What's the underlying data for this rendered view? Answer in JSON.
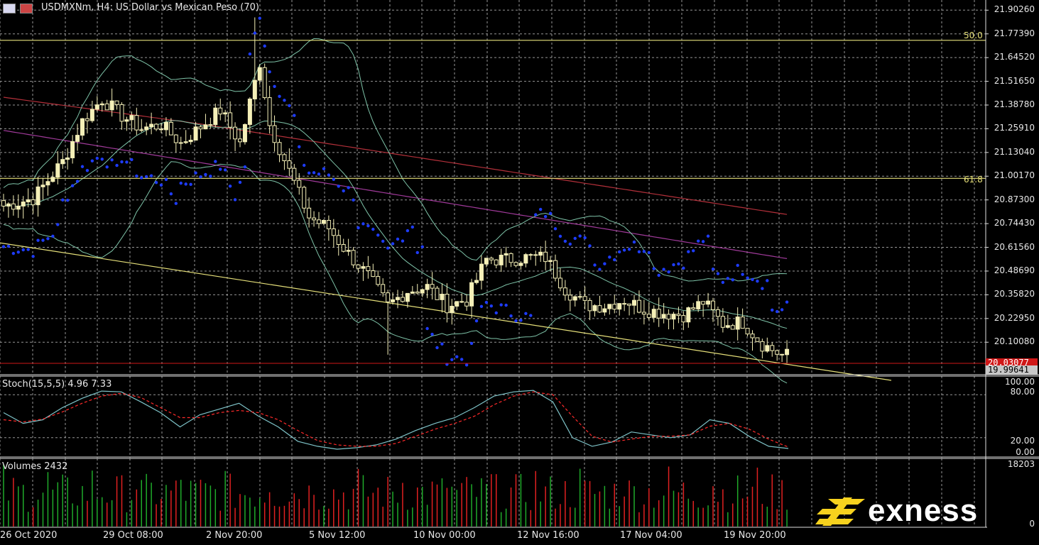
{
  "window": {
    "title": "USDMXNm, H4:  US Dollar vs Mexican Peso (70)"
  },
  "brand": {
    "name": "exness",
    "color": "#f7d21e"
  },
  "colors": {
    "background": "#000000",
    "grid": "#c8c8c8",
    "bull_candle": "#f5f0b8",
    "bear_candle": "#f5f0b8",
    "fib_line": "#e6e07a",
    "trend_line": "#e6e07a",
    "bollinger": "#7ec3a8",
    "ma_slow": "#b3303a",
    "ma_medium": "#a03a9a",
    "parabolic_sar": "#1e3cff",
    "stoch_main": "#7ec3c8",
    "stoch_signal": "#ff2a2a",
    "vol_up": "#1faa2a",
    "vol_down": "#e02020",
    "bid_tag": "#d01818",
    "ask_tag": "#b0b0b0"
  },
  "chart_data": [
    {
      "type": "candlestick",
      "title": "USDMXNm, H4:  US Dollar vs Mexican Peso (70)",
      "ylim": [
        19.94,
        21.95
      ],
      "y_ticks": [
        "21.90260",
        "21.77390",
        "21.64520",
        "21.51650",
        "21.38780",
        "21.25910",
        "21.13040",
        "21.00170",
        "20.87300",
        "20.74430",
        "20.61560",
        "20.48690",
        "20.35820",
        "20.22950",
        "20.10080"
      ],
      "x_ticks": [
        "26 Oct 2020",
        "29 Oct 08:00",
        "2 Nov 20:00",
        "5 Nov 12:00",
        "10 Nov 00:00",
        "12 Nov 16:00",
        "17 Nov 04:00",
        "19 Nov 20:00"
      ],
      "current_bid": "20.03077",
      "current_ask": "19.99641",
      "fibonacci": [
        {
          "level": "50.0",
          "price": 21.739
        },
        {
          "level": "61.8",
          "price": 20.99
        }
      ],
      "trend_line": {
        "start": [
          0,
          20.64
        ],
        "end": [
          160,
          19.94
        ]
      },
      "close_points": [
        [
          0,
          20.84
        ],
        [
          6,
          20.88
        ],
        [
          12,
          21.08
        ],
        [
          16,
          21.3
        ],
        [
          20,
          21.42
        ],
        [
          24,
          21.33
        ],
        [
          28,
          21.26
        ],
        [
          32,
          21.28
        ],
        [
          36,
          21.18
        ],
        [
          40,
          21.27
        ],
        [
          44,
          21.36
        ],
        [
          48,
          21.18
        ],
        [
          52,
          21.62
        ],
        [
          54,
          21.28
        ],
        [
          58,
          21.03
        ],
        [
          62,
          20.78
        ],
        [
          66,
          20.72
        ],
        [
          70,
          20.58
        ],
        [
          74,
          20.46
        ],
        [
          78,
          20.3
        ],
        [
          82,
          20.38
        ],
        [
          86,
          20.4
        ],
        [
          90,
          20.3
        ],
        [
          94,
          20.33
        ],
        [
          98,
          20.55
        ],
        [
          102,
          20.55
        ],
        [
          106,
          20.56
        ],
        [
          110,
          20.56
        ],
        [
          114,
          20.39
        ],
        [
          118,
          20.3
        ],
        [
          122,
          20.3
        ],
        [
          126,
          20.33
        ],
        [
          130,
          20.28
        ],
        [
          134,
          20.26
        ],
        [
          138,
          20.25
        ],
        [
          142,
          20.32
        ],
        [
          146,
          20.2
        ],
        [
          150,
          20.21
        ],
        [
          154,
          20.09
        ],
        [
          158,
          20.03
        ]
      ]
    },
    {
      "type": "line",
      "title": "Stoch(15,5,5) 4.96 7.33",
      "ylim": [
        0,
        100
      ],
      "y_ticks": [
        "100.00",
        "80.00",
        "20.00",
        "0.00"
      ],
      "series": [
        {
          "values": [
            55,
            40,
            45,
            62,
            75,
            85,
            84,
            70,
            55,
            35,
            52,
            60,
            68,
            50,
            35,
            15,
            8,
            4,
            6,
            10,
            18,
            30,
            40,
            48,
            62,
            78,
            84,
            86,
            70,
            20,
            8,
            14,
            28,
            24,
            20,
            24,
            45,
            40,
            22,
            8,
            5
          ]
        },
        {
          "values": [
            45,
            42,
            46,
            56,
            68,
            78,
            82,
            76,
            62,
            48,
            48,
            55,
            58,
            55,
            45,
            30,
            16,
            10,
            8,
            8,
            12,
            22,
            32,
            40,
            50,
            66,
            78,
            84,
            80,
            50,
            22,
            14,
            18,
            22,
            22,
            24,
            36,
            40,
            32,
            18,
            7
          ]
        }
      ]
    },
    {
      "type": "bar",
      "title": "Volumes 2432",
      "y_ticks": [
        "18203",
        "0"
      ],
      "ylim": [
        0,
        18203
      ]
    }
  ],
  "axes": {
    "stoch_ticks": [
      "100.00",
      "80.00",
      "20.00",
      "0.00"
    ],
    "volume_ticks": [
      "18203",
      "0"
    ]
  }
}
